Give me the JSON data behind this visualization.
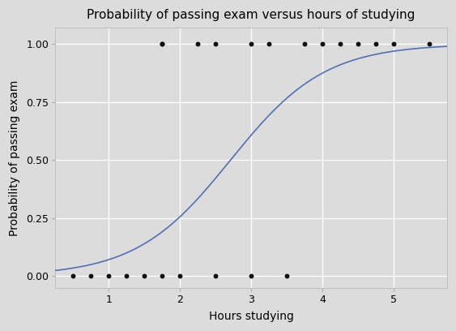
{
  "title": "Probability of passing exam versus hours of studying",
  "xlabel": "Hours studying",
  "ylabel": "Probability of passing exam",
  "bg_color": "#dcdcdc",
  "plot_bg_color": "#dcdcdc",
  "line_color": "#5070b8",
  "dot_color": "#111111",
  "xlim": [
    0.25,
    5.75
  ],
  "ylim": [
    -0.05,
    1.07
  ],
  "xticks": [
    1,
    2,
    3,
    4,
    5
  ],
  "yticks": [
    0.0,
    0.25,
    0.5,
    0.75,
    1.0
  ],
  "logistic_beta0": -4.077,
  "logistic_beta1": 1.5046,
  "data_points_x": [
    0.5,
    0.75,
    1.0,
    1.25,
    1.5,
    1.75,
    2.0,
    2.5,
    3.0,
    3.5,
    1.75,
    1.75,
    2.25,
    2.5,
    3.0,
    3.25,
    3.75,
    4.0,
    4.25,
    4.5,
    4.75,
    5.0,
    5.5
  ],
  "data_points_y": [
    0,
    0,
    0,
    0,
    0,
    0,
    0,
    0,
    0,
    0,
    1,
    1,
    1,
    1,
    1,
    1,
    1,
    1,
    1,
    1,
    1,
    1,
    1
  ],
  "dot_size": 18,
  "title_fontsize": 11,
  "label_fontsize": 10,
  "tick_fontsize": 9,
  "grid_color": "#ffffff",
  "grid_lw": 1.0,
  "line_lw": 1.2
}
